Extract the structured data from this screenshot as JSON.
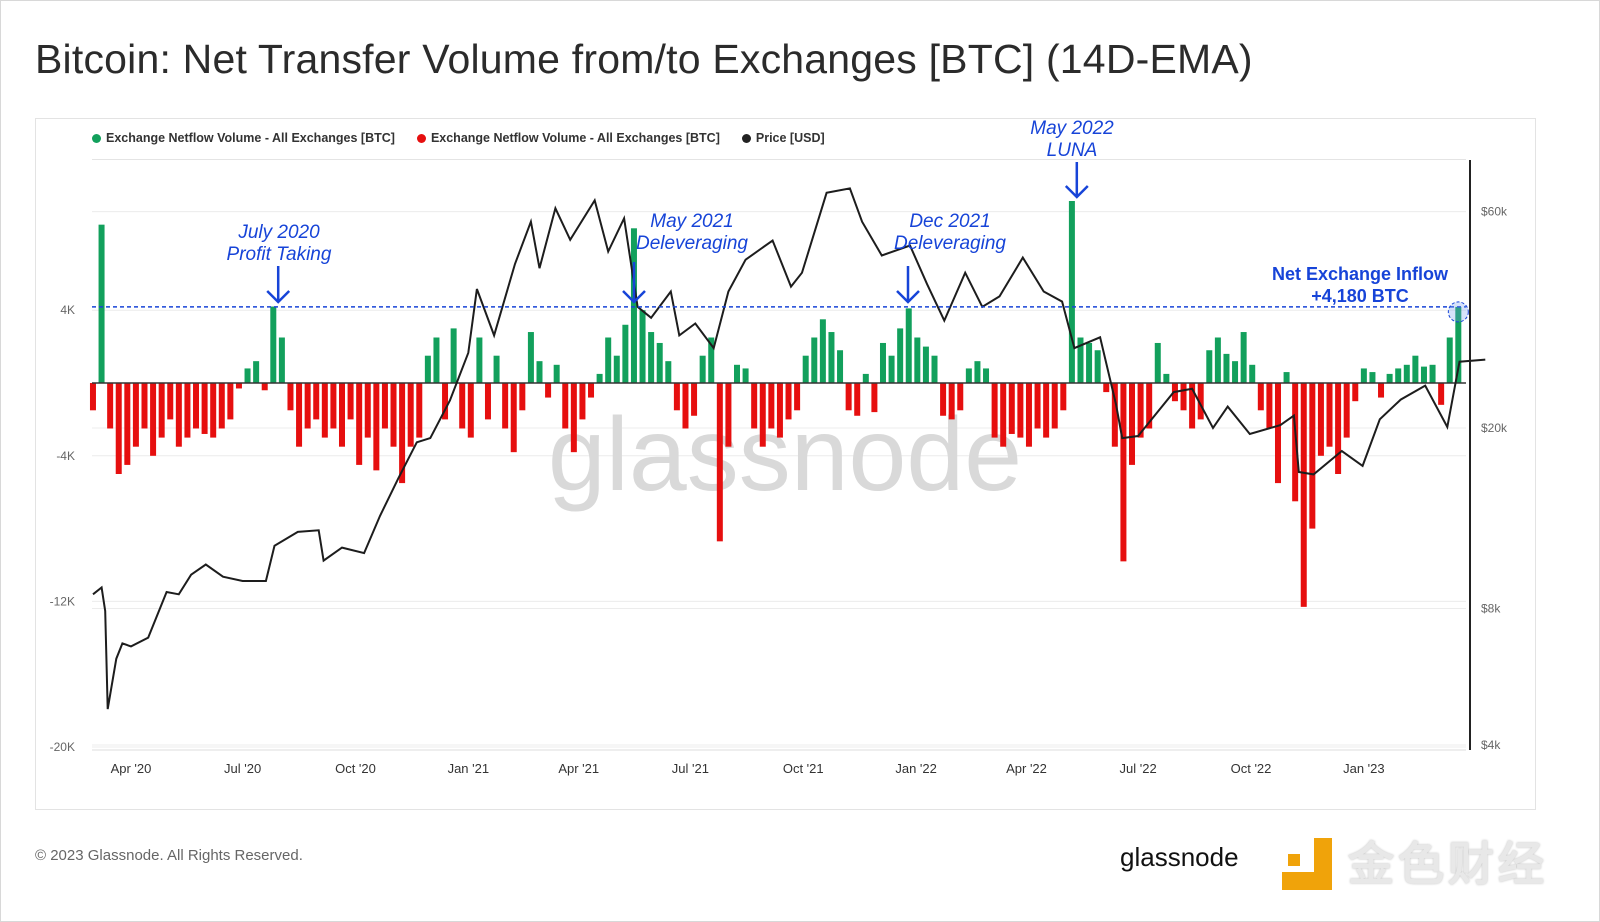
{
  "title": "Bitcoin: Net Transfer Volume from/to Exchanges [BTC] (14D-EMA)",
  "footer": "© 2023 Glassnode. All Rights Reserved.",
  "watermark": "glassnode",
  "logo": {
    "mark_color": "#f0a30a",
    "cn_text": "金色财经",
    "brand": "glassnode"
  },
  "chart_data": {
    "type": "bar+line",
    "title": "Bitcoin: Net Transfer Volume from/to Exchanges [BTC] (14D-EMA)",
    "legend": [
      {
        "label": "Exchange Netflow Volume - All Exchanges [BTC]",
        "color": "#12a05c"
      },
      {
        "label": "Exchange Netflow Volume - All Exchanges [BTC]",
        "color": "#e60f0f"
      },
      {
        "label": "Price [USD]",
        "color": "#222222"
      }
    ],
    "legend_position": "top-left",
    "grid": true,
    "x_ticks": [
      {
        "date": "2020-04-01",
        "label": "Apr '20"
      },
      {
        "date": "2020-07-01",
        "label": "Jul '20"
      },
      {
        "date": "2020-10-01",
        "label": "Oct '20"
      },
      {
        "date": "2021-01-01",
        "label": "Jan '21"
      },
      {
        "date": "2021-04-01",
        "label": "Apr '21"
      },
      {
        "date": "2021-07-01",
        "label": "Jul '21"
      },
      {
        "date": "2021-10-01",
        "label": "Oct '21"
      },
      {
        "date": "2022-01-01",
        "label": "Jan '22"
      },
      {
        "date": "2022-04-01",
        "label": "Apr '22"
      },
      {
        "date": "2022-07-01",
        "label": "Jul '22"
      },
      {
        "date": "2022-10-01",
        "label": "Oct '22"
      },
      {
        "date": "2023-01-01",
        "label": "Jan '23"
      }
    ],
    "y_left": {
      "scale": "linear",
      "range": [
        -20000,
        8000
      ],
      "ticks": [
        {
          "v": 4000,
          "label": "4K"
        },
        {
          "v": -4000,
          "label": "-4K"
        },
        {
          "v": -12000,
          "label": "-12K"
        },
        {
          "v": -20000,
          "label": "-20K"
        }
      ]
    },
    "y_right": {
      "scale": "log",
      "range": [
        4000,
        90000
      ],
      "ticks": [
        {
          "v": 60000,
          "label": "$60k"
        },
        {
          "v": 20000,
          "label": "$20k"
        },
        {
          "v": 8000,
          "label": "$8k"
        },
        {
          "v": 4000,
          "label": "$4k"
        }
      ]
    },
    "netflow": {
      "start": "2020-03-01",
      "step_days": 7,
      "values": [
        -1500,
        8700,
        -2500,
        -5000,
        -4500,
        -3500,
        -2500,
        -4000,
        -3000,
        -2000,
        -3500,
        -3000,
        -2500,
        -2800,
        -3000,
        -2500,
        -2000,
        -300,
        800,
        1200,
        -400,
        4200,
        2500,
        -1500,
        -3500,
        -2500,
        -2000,
        -3000,
        -2500,
        -3500,
        -2000,
        -4500,
        -3000,
        -4800,
        -2500,
        -3500,
        -5500,
        -3500,
        -3000,
        1500,
        2500,
        -2000,
        3000,
        -2500,
        -3000,
        2500,
        -2000,
        1500,
        -2500,
        -3800,
        -1500,
        2800,
        1200,
        -800,
        1000,
        -2500,
        -3800,
        -2000,
        -800,
        500,
        2500,
        1500,
        3200,
        8500,
        4000,
        2800,
        2200,
        1200,
        -1500,
        -2500,
        -1800,
        1500,
        2500,
        -8700,
        -3500,
        1000,
        800,
        -2500,
        -3500,
        -2500,
        -3000,
        -2000,
        -1500,
        1500,
        2500,
        3500,
        2800,
        1800,
        -1500,
        -1800,
        500,
        -1600,
        2200,
        1500,
        3000,
        4100,
        2500,
        2000,
        1500,
        -1800,
        -2000,
        -1500,
        800,
        1200,
        800,
        -3000,
        -3500,
        -2800,
        -3000,
        -3500,
        -2500,
        -3000,
        -2500,
        -1500,
        10000,
        2500,
        2200,
        1800,
        -500,
        -3500,
        -9800,
        -4500,
        -3000,
        -2500,
        2200,
        500,
        -1000,
        -1500,
        -2500,
        -2000,
        1800,
        2500,
        1600,
        1200,
        2800,
        1000,
        -1500,
        -2500,
        -5500,
        600,
        -6500,
        -12300,
        -8000,
        -4000,
        -3500,
        -5000,
        -3000,
        -1000,
        800,
        600,
        -800,
        500,
        800,
        1000,
        1500,
        900,
        1000,
        -1200,
        2500,
        4180
      ],
      "positive_color": "#12a05c",
      "negative_color": "#e60f0f"
    },
    "price": [
      [
        "2020-03-01",
        8600
      ],
      [
        "2020-03-08",
        8900
      ],
      [
        "2020-03-11",
        7900
      ],
      [
        "2020-03-13",
        4800
      ],
      [
        "2020-03-20",
        6200
      ],
      [
        "2020-03-25",
        6700
      ],
      [
        "2020-04-01",
        6600
      ],
      [
        "2020-04-15",
        6900
      ],
      [
        "2020-04-30",
        8700
      ],
      [
        "2020-05-10",
        8600
      ],
      [
        "2020-05-20",
        9500
      ],
      [
        "2020-06-01",
        10000
      ],
      [
        "2020-06-15",
        9400
      ],
      [
        "2020-07-01",
        9200
      ],
      [
        "2020-07-20",
        9200
      ],
      [
        "2020-07-27",
        11000
      ],
      [
        "2020-08-15",
        11800
      ],
      [
        "2020-09-01",
        11900
      ],
      [
        "2020-09-05",
        10200
      ],
      [
        "2020-09-20",
        10900
      ],
      [
        "2020-10-08",
        10600
      ],
      [
        "2020-10-21",
        12800
      ],
      [
        "2020-11-05",
        15500
      ],
      [
        "2020-11-20",
        18600
      ],
      [
        "2020-12-01",
        19000
      ],
      [
        "2020-12-17",
        23000
      ],
      [
        "2021-01-01",
        29300
      ],
      [
        "2021-01-08",
        40500
      ],
      [
        "2021-01-22",
        32000
      ],
      [
        "2021-02-08",
        46000
      ],
      [
        "2021-02-21",
        57000
      ],
      [
        "2021-02-28",
        45000
      ],
      [
        "2021-03-13",
        61000
      ],
      [
        "2021-03-25",
        52000
      ],
      [
        "2021-04-14",
        63500
      ],
      [
        "2021-04-25",
        49000
      ],
      [
        "2021-05-08",
        58000
      ],
      [
        "2021-05-19",
        37000
      ],
      [
        "2021-05-30",
        35000
      ],
      [
        "2021-06-15",
        40000
      ],
      [
        "2021-06-22",
        32000
      ],
      [
        "2021-07-05",
        34000
      ],
      [
        "2021-07-20",
        30000
      ],
      [
        "2021-08-01",
        40000
      ],
      [
        "2021-08-15",
        47000
      ],
      [
        "2021-09-06",
        51800
      ],
      [
        "2021-09-21",
        41000
      ],
      [
        "2021-09-30",
        44000
      ],
      [
        "2021-10-20",
        66000
      ],
      [
        "2021-11-08",
        67500
      ],
      [
        "2021-11-18",
        57000
      ],
      [
        "2021-12-04",
        48000
      ],
      [
        "2021-12-27",
        50500
      ],
      [
        "2022-01-10",
        41500
      ],
      [
        "2022-01-24",
        34500
      ],
      [
        "2022-02-10",
        44000
      ],
      [
        "2022-02-24",
        37000
      ],
      [
        "2022-03-10",
        39000
      ],
      [
        "2022-03-29",
        47500
      ],
      [
        "2022-04-15",
        40000
      ],
      [
        "2022-04-30",
        38000
      ],
      [
        "2022-05-10",
        30000
      ],
      [
        "2022-05-31",
        31700
      ],
      [
        "2022-06-13",
        22500
      ],
      [
        "2022-06-18",
        19000
      ],
      [
        "2022-07-01",
        19200
      ],
      [
        "2022-07-30",
        24000
      ],
      [
        "2022-08-14",
        24400
      ],
      [
        "2022-08-31",
        20000
      ],
      [
        "2022-09-12",
        22300
      ],
      [
        "2022-09-30",
        19400
      ],
      [
        "2022-10-25",
        20300
      ],
      [
        "2022-11-05",
        21300
      ],
      [
        "2022-11-09",
        16000
      ],
      [
        "2022-11-21",
        15800
      ],
      [
        "2022-12-14",
        17800
      ],
      [
        "2022-12-31",
        16500
      ],
      [
        "2023-01-14",
        20900
      ],
      [
        "2023-01-31",
        23100
      ],
      [
        "2023-02-20",
        24800
      ],
      [
        "2023-03-10",
        20100
      ],
      [
        "2023-03-20",
        28000
      ],
      [
        "2023-04-10",
        28300
      ]
    ],
    "reference_line": {
      "value": 4180,
      "style": "dashed",
      "color": "#1744d8"
    },
    "annotations": [
      {
        "date": "2020-07-30",
        "lines": [
          "July 2020",
          "Profit Taking"
        ],
        "style": "italic"
      },
      {
        "date": "2021-05-19",
        "lines": [
          "May 2021",
          "Deleveraging"
        ],
        "style": "italic"
      },
      {
        "date": "2021-12-26",
        "lines": [
          "Dec 2021",
          "Deleveraging"
        ],
        "style": "italic"
      },
      {
        "date": "2022-05-12",
        "lines": [
          "May 2022",
          "LUNA"
        ],
        "style": "italic"
      },
      {
        "date": "2023-03-19",
        "lines": [
          "Net Exchange Inflow",
          "+4,180 BTC"
        ],
        "style": "bold"
      }
    ]
  }
}
